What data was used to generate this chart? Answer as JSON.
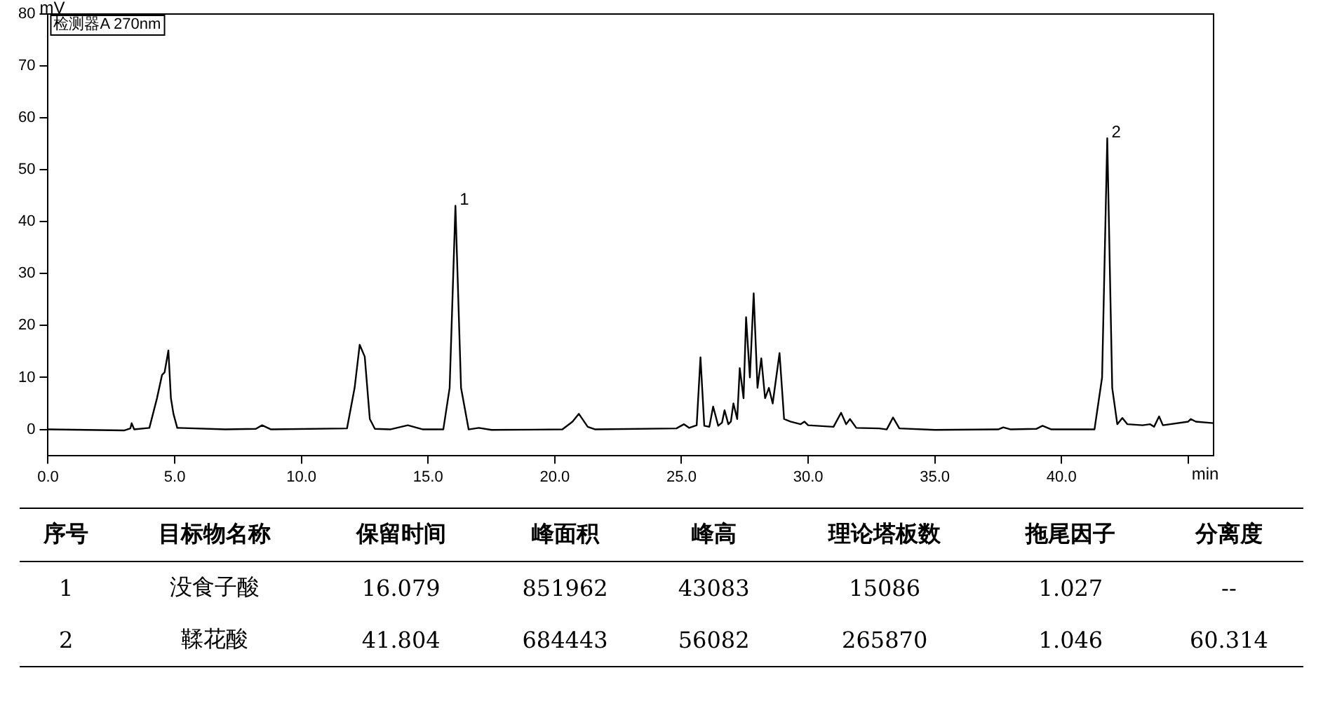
{
  "chart_data": [
    {
      "type": "line",
      "xlabel": "min",
      "ylabel": "mV",
      "color": "#000000",
      "xlim": [
        0,
        46
      ],
      "ylim": [
        -5,
        80
      ],
      "xticks": [
        {
          "value": 0,
          "label": "0.0"
        },
        {
          "value": 5,
          "label": "5.0"
        },
        {
          "value": 10,
          "label": "10.0"
        },
        {
          "value": 15,
          "label": "15.0"
        },
        {
          "value": 20,
          "label": "20.0"
        },
        {
          "value": 25,
          "label": "25.0"
        },
        {
          "value": 30,
          "label": "30.0"
        },
        {
          "value": 35,
          "label": "35.0"
        },
        {
          "value": 40,
          "label": "40.0"
        },
        {
          "value": 45,
          "label": null
        }
      ],
      "yticks": [
        0,
        10,
        20,
        30,
        40,
        50,
        60,
        70,
        80
      ],
      "grid": false,
      "legend": false,
      "marker": "none",
      "line_style": "solid",
      "annotations": [
        "检测器A 270nm",
        {
          "text": "1",
          "x": 16.079,
          "y": 43.083
        },
        {
          "text": "2",
          "x": 41.804,
          "y": 56.082
        }
      ],
      "x": [
        0,
        3,
        3.25,
        3.3,
        3.4,
        4.0,
        4.3,
        4.5,
        4.6,
        4.75,
        4.85,
        4.95,
        5.1,
        7,
        8.2,
        8.45,
        8.8,
        11.8,
        12.1,
        12.3,
        12.5,
        12.7,
        12.9,
        13.5,
        14.2,
        14.8,
        15.6,
        15.85,
        16.079,
        16.3,
        16.6,
        17.0,
        17.5,
        20.3,
        20.7,
        20.95,
        21.3,
        21.6,
        24.8,
        25.1,
        25.3,
        25.6,
        25.75,
        25.9,
        26.1,
        26.25,
        26.45,
        26.6,
        26.7,
        26.85,
        26.95,
        27.05,
        27.2,
        27.3,
        27.45,
        27.55,
        27.7,
        27.85,
        28.0,
        28.15,
        28.3,
        28.45,
        28.6,
        28.87,
        29.05,
        29.3,
        29.7,
        29.85,
        30.0,
        31.0,
        31.3,
        31.5,
        31.65,
        31.9,
        32.8,
        33.1,
        33.35,
        33.6,
        35,
        37.5,
        37.7,
        38,
        39.0,
        39.25,
        39.6,
        41.3,
        41.6,
        41.804,
        42.0,
        42.2,
        42.4,
        42.6,
        43.2,
        43.5,
        43.65,
        43.85,
        44.0,
        45.0,
        45.1,
        45.3,
        46
      ],
      "values": [
        0,
        -0.2,
        0.2,
        1.2,
        0,
        0.3,
        6,
        10.5,
        11,
        15.2,
        6,
        3,
        0.3,
        0,
        0.1,
        0.8,
        0,
        0.2,
        8,
        16.3,
        14,
        2,
        0.1,
        0,
        0.8,
        0,
        0,
        8,
        43.08,
        8,
        0,
        0.3,
        -0.1,
        0,
        1.5,
        3,
        0.5,
        0,
        0.2,
        1.0,
        0.3,
        0.8,
        13.9,
        0.7,
        0.5,
        4.4,
        0.7,
        1.3,
        3.7,
        1.0,
        1.5,
        5.0,
        2.0,
        11.8,
        6,
        21.6,
        10,
        26.2,
        8,
        13.7,
        6,
        8,
        5,
        14.7,
        2,
        1.5,
        1,
        1.5,
        0.8,
        0.5,
        3.2,
        1.0,
        2.0,
        0.3,
        0.2,
        0,
        2.3,
        0.2,
        -0.1,
        0,
        0.4,
        0,
        0.1,
        0.7,
        0,
        0,
        10,
        56.08,
        8,
        1,
        2.2,
        1.0,
        0.8,
        1.0,
        0.5,
        2.5,
        0.8,
        1.5,
        2.0,
        1.5,
        1.2
      ]
    },
    {
      "type": "other",
      "categories": [
        "序号",
        "目标物名称",
        "保留时间",
        "峰面积",
        "峰高",
        "理论塔板数",
        "拖尾因子",
        "分离度"
      ],
      "cell_labels": [
        [
          "1",
          "没食子酸",
          "16.079",
          "851962",
          "43083",
          "15086",
          "1.027",
          "--"
        ],
        [
          "2",
          "鞣花酸",
          "41.804",
          "684443",
          "56082",
          "265870",
          "1.046",
          "60.314"
        ]
      ]
    }
  ]
}
